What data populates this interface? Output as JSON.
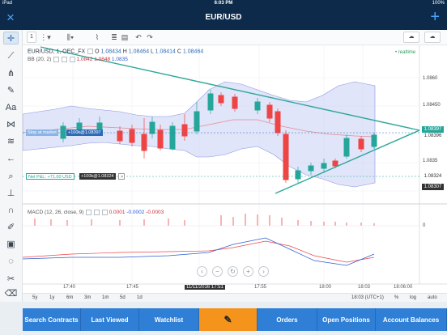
{
  "status": {
    "left": "iPad",
    "time": "6:03 PM",
    "battery": "100%"
  },
  "nav": {
    "title": "EUR/USD",
    "close_icon": "×",
    "add_icon": "+"
  },
  "toolbar": {
    "interval": "1"
  },
  "chart": {
    "symbol": "EUR/USD, 1, OEC_FX",
    "open_label": "O",
    "open": "1.08434",
    "high_label": "H",
    "high": "1.08464",
    "low_label": "L",
    "low": "1.08414",
    "close_label": "C",
    "close": "1.08464",
    "realtime": "• realtime",
    "bb_label": "BB (20, 2)",
    "bb_v1": "1.0842",
    "bb_v2": "1.0848",
    "bb_v3": "1.0835",
    "macd_label": "MACD (12, 26, close, 9)",
    "macd_v1": "0.0001",
    "macd_v2": "-0.0002",
    "macd_v3": "-0.0003",
    "order_stop": "Stop at market",
    "order_buy": "+100k@1.08397",
    "order_pnl": "Net P&L: +71.00 USD",
    "order_pos": "+100k@1.08324",
    "price_current": "1.08397",
    "price_current2": "1.08396",
    "price_pos": "1.08324",
    "price_low": "1.08307",
    "y_labels": [
      "1.0860",
      "1.08450",
      "1.0835"
    ],
    "x_labels": [
      "17:40",
      "17:45",
      "11/11/2016 17:51",
      "17:55",
      "18:00",
      "18:03",
      "18:06:00"
    ],
    "macd_y": "0"
  },
  "periods": [
    "5y",
    "1y",
    "6m",
    "3m",
    "1m",
    "5d",
    "1d"
  ],
  "footer": {
    "time": "18:03 (UTC+1)",
    "pct": "%",
    "log": "log",
    "auto": "auto"
  },
  "bottom_tabs": [
    {
      "label": "Search Contracts"
    },
    {
      "label": "Last Viewed"
    },
    {
      "label": "Watchlist"
    },
    {
      "label": ""
    },
    {
      "label": "Orders"
    },
    {
      "label": "Open Positions"
    },
    {
      "label": "Account Balances"
    }
  ],
  "colors": {
    "up": "#26a69a",
    "down": "#ef4444",
    "band": "#c9cff5",
    "nav": "#0d2a4a",
    "accent": "#2f7fd6",
    "active_tab": "#f5941d"
  }
}
